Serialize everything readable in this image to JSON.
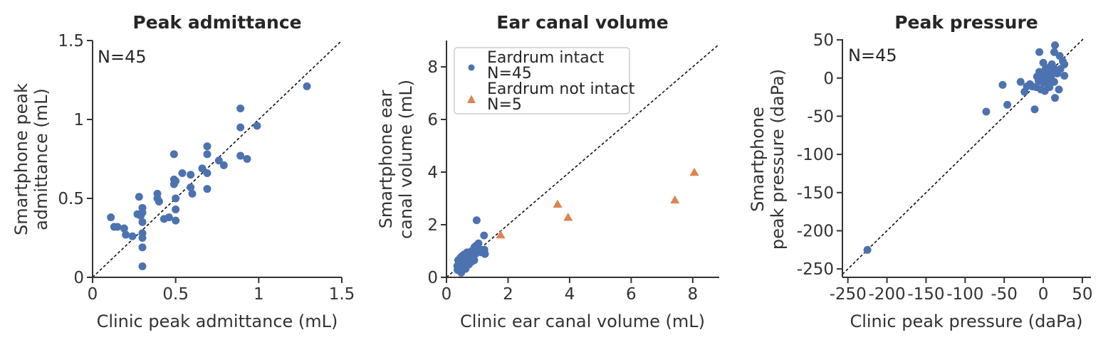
{
  "figure": {
    "background": "#ffffff",
    "description": "Three scatter plots comparing smartphone vs clinic tympanometry measurements"
  },
  "colors": {
    "blue": "#4c72b0",
    "orange": "#dd8452",
    "axis": "#333333",
    "identity_line": "#111111"
  },
  "chart_data": [
    {
      "type": "scatter",
      "title": "Peak admittance",
      "annotation": "N=45",
      "xlabel": "Clinic peak admittance (mL)",
      "ylabel_lines": [
        "Smartphone peak",
        "admittance (mL)"
      ],
      "xlim": [
        0,
        1.5
      ],
      "ylim": [
        0,
        1.5
      ],
      "xtick_values": [
        0,
        0.5,
        1,
        1.5
      ],
      "xtick_labels": [
        "0",
        "0.5",
        "1",
        "1.5"
      ],
      "ytick_values": [
        0,
        0.5,
        1,
        1.5
      ],
      "ytick_labels": [
        "0",
        "0.5",
        "1",
        "1.5"
      ],
      "identity_line": true,
      "grid": false,
      "legend": null,
      "series": [
        {
          "name": "Eardrum intact",
          "n": 45,
          "marker": "circle",
          "color": "#4c72b0",
          "points": [
            [
              0.11,
              0.38
            ],
            [
              0.13,
              0.32
            ],
            [
              0.15,
              0.32
            ],
            [
              0.19,
              0.31
            ],
            [
              0.2,
              0.27
            ],
            [
              0.24,
              0.26
            ],
            [
              0.28,
              0.51
            ],
            [
              0.27,
              0.4
            ],
            [
              0.29,
              0.39
            ],
            [
              0.3,
              0.44
            ],
            [
              0.3,
              0.41
            ],
            [
              0.3,
              0.35
            ],
            [
              0.3,
              0.28
            ],
            [
              0.3,
              0.25
            ],
            [
              0.3,
              0.19
            ],
            [
              0.3,
              0.07
            ],
            [
              0.39,
              0.53
            ],
            [
              0.39,
              0.5
            ],
            [
              0.4,
              0.48
            ],
            [
              0.43,
              0.37
            ],
            [
              0.46,
              0.38
            ],
            [
              0.49,
              0.78
            ],
            [
              0.49,
              0.62
            ],
            [
              0.5,
              0.61
            ],
            [
              0.49,
              0.59
            ],
            [
              0.5,
              0.5
            ],
            [
              0.5,
              0.43
            ],
            [
              0.5,
              0.36
            ],
            [
              0.54,
              0.66
            ],
            [
              0.59,
              0.65
            ],
            [
              0.59,
              0.57
            ],
            [
              0.6,
              0.53
            ],
            [
              0.66,
              0.69
            ],
            [
              0.69,
              0.83
            ],
            [
              0.69,
              0.78
            ],
            [
              0.69,
              0.66
            ],
            [
              0.69,
              0.56
            ],
            [
              0.76,
              0.74
            ],
            [
              0.79,
              0.71
            ],
            [
              0.89,
              1.07
            ],
            [
              0.89,
              0.95
            ],
            [
              0.89,
              0.77
            ],
            [
              0.93,
              0.75
            ],
            [
              0.99,
              0.96
            ],
            [
              1.29,
              1.21
            ]
          ]
        }
      ]
    },
    {
      "type": "scatter",
      "title": "Ear canal volume",
      "annotation": null,
      "xlabel": "Clinic ear canal volume (mL)",
      "ylabel_lines": [
        "Smartphone ear",
        "canal volume (mL)"
      ],
      "xlim": [
        0,
        8.86
      ],
      "ylim": [
        0,
        9.0
      ],
      "xtick_values": [
        0,
        2,
        4,
        6,
        8
      ],
      "xtick_labels": [
        "0",
        "2",
        "4",
        "6",
        "8"
      ],
      "ytick_values": [
        0,
        2,
        4,
        6,
        8
      ],
      "ytick_labels": [
        "0",
        "2",
        "4",
        "6",
        "8"
      ],
      "identity_line": true,
      "grid": false,
      "legend": {
        "position": "upper left",
        "entries": [
          {
            "marker": "circle",
            "color": "#4c72b0",
            "lines": [
              "Eardrum intact",
              "N=45"
            ]
          },
          {
            "marker": "triangle",
            "color": "#dd8452",
            "lines": [
              "Eardrum not intact",
              "N=5"
            ]
          }
        ]
      },
      "series": [
        {
          "name": "Eardrum intact",
          "n": 45,
          "marker": "circle",
          "color": "#4c72b0",
          "points": [
            [
              0.98,
              2.17
            ],
            [
              1.22,
              1.59
            ],
            [
              1.23,
              1.05
            ],
            [
              1.25,
              0.89
            ],
            [
              1.13,
              0.95
            ],
            [
              1.04,
              1.29
            ],
            [
              0.96,
              1.2
            ],
            [
              0.91,
              1.15
            ],
            [
              1.0,
              1.11
            ],
            [
              0.87,
              1.04
            ],
            [
              0.81,
              0.99
            ],
            [
              0.92,
              0.99
            ],
            [
              0.75,
              0.92
            ],
            [
              0.85,
              0.89
            ],
            [
              0.67,
              0.95
            ],
            [
              0.62,
              0.89
            ],
            [
              0.56,
              0.86
            ],
            [
              0.64,
              0.8
            ],
            [
              0.72,
              0.78
            ],
            [
              0.79,
              0.76
            ],
            [
              0.5,
              0.8
            ],
            [
              0.45,
              0.74
            ],
            [
              0.54,
              0.69
            ],
            [
              0.62,
              0.67
            ],
            [
              0.69,
              0.65
            ],
            [
              0.9,
              0.65
            ],
            [
              0.82,
              0.6
            ],
            [
              0.38,
              0.65
            ],
            [
              0.42,
              0.58
            ],
            [
              0.5,
              0.55
            ],
            [
              0.58,
              0.53
            ],
            [
              0.65,
              0.51
            ],
            [
              0.73,
              0.49
            ],
            [
              0.35,
              0.43
            ],
            [
              0.46,
              0.4
            ],
            [
              0.54,
              0.34
            ],
            [
              0.62,
              0.32
            ],
            [
              0.36,
              0.28
            ],
            [
              0.48,
              0.18
            ],
            [
              0.58,
              0.6
            ],
            [
              0.7,
              0.7
            ],
            [
              0.77,
              0.85
            ],
            [
              0.88,
              0.78
            ],
            [
              0.95,
              0.9
            ],
            [
              1.08,
              1.06
            ]
          ]
        },
        {
          "name": "Eardrum not intact",
          "n": 5,
          "marker": "triangle",
          "color": "#dd8452",
          "points": [
            [
              1.76,
              1.6
            ],
            [
              3.61,
              2.77
            ],
            [
              3.95,
              2.27
            ],
            [
              7.42,
              2.93
            ],
            [
              8.05,
              3.98
            ]
          ]
        }
      ]
    },
    {
      "type": "scatter",
      "title": "Peak pressure",
      "annotation": "N=45",
      "xlabel": "Clinic peak pressure (daPa)",
      "ylabel_lines": [
        "Smartphone",
        "peak pressure (daPa)"
      ],
      "xlim": [
        -257,
        61
      ],
      "ylim": [
        -261,
        51
      ],
      "xtick_values": [
        -250,
        -200,
        -150,
        -100,
        -50,
        0,
        50
      ],
      "xtick_labels": [
        "-250",
        "-200",
        "-150",
        "-100",
        "-50",
        "0",
        "50"
      ],
      "ytick_values": [
        50,
        0,
        -50,
        -100,
        -150,
        -200,
        -250
      ],
      "ytick_labels": [
        "50",
        "0",
        "-50",
        "-100",
        "-150",
        "-200",
        "-250"
      ],
      "identity_line": true,
      "grid": false,
      "legend": null,
      "series": [
        {
          "name": "Eardrum intact",
          "n": 45,
          "marker": "circle",
          "color": "#4c72b0",
          "points": [
            [
              15,
              43
            ],
            [
              -5,
              34
            ],
            [
              14,
              34
            ],
            [
              21,
              29
            ],
            [
              0,
              20
            ],
            [
              11,
              18
            ],
            [
              27,
              18
            ],
            [
              -5,
              8
            ],
            [
              3,
              12
            ],
            [
              8,
              14
            ],
            [
              14,
              12
            ],
            [
              18,
              6
            ],
            [
              27,
              3
            ],
            [
              -8,
              2
            ],
            [
              -2,
              0
            ],
            [
              5,
              -2
            ],
            [
              9,
              -3
            ],
            [
              14,
              -5
            ],
            [
              -29,
              -5
            ],
            [
              -52,
              -9
            ],
            [
              -21,
              -11
            ],
            [
              -14,
              -11
            ],
            [
              -9,
              -12
            ],
            [
              -3,
              -15
            ],
            [
              2,
              -17
            ],
            [
              20,
              -15
            ],
            [
              -24,
              -18
            ],
            [
              15,
              -26
            ],
            [
              -46,
              -35
            ],
            [
              -11,
              -41
            ],
            [
              -73,
              -44
            ],
            [
              -225,
              -225
            ],
            [
              6,
              5
            ],
            [
              2,
              3
            ],
            [
              -1,
              6
            ],
            [
              10,
              2
            ],
            [
              12,
              8
            ],
            [
              17,
              10
            ],
            [
              5,
              -8
            ],
            [
              0,
              -6
            ],
            [
              -6,
              -4
            ],
            [
              -17,
              -8
            ],
            [
              8,
              -12
            ],
            [
              22,
              12
            ],
            [
              25,
              22
            ]
          ]
        }
      ]
    }
  ]
}
